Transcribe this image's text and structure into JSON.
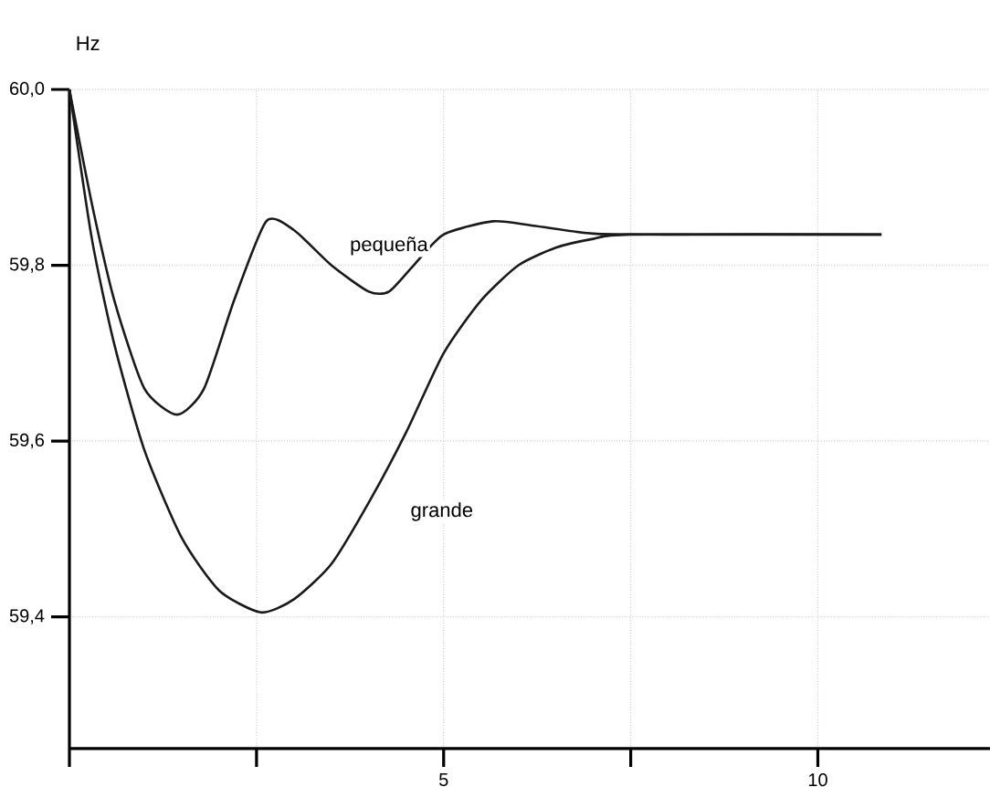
{
  "chart_data": {
    "type": "line",
    "ylabel": "Hz",
    "xlim": [
      0,
      12.3
    ],
    "ylim": [
      59.25,
      60.0
    ],
    "xticks": [
      {
        "value": 0,
        "label": null
      },
      {
        "value": 2.5,
        "label": null
      },
      5,
      {
        "value": 7.5,
        "label": null
      },
      10
    ],
    "yticks": [
      {
        "value": 59.4,
        "label": "59,4"
      },
      {
        "value": 59.6,
        "label": "59,6"
      },
      {
        "value": 59.8,
        "label": "59,8"
      },
      {
        "value": 60.0,
        "label": "60,0"
      }
    ],
    "grid": true,
    "marker": "none",
    "line_style": "solid",
    "series": [
      {
        "name": "pequeña",
        "color": "#1a1a1a",
        "x": [
          0,
          0.3,
          0.6,
          1,
          1.44,
          1.8,
          2.2,
          2.63,
          3,
          3.5,
          4,
          4.27,
          4.6,
          5,
          5.66,
          6.2,
          7,
          8,
          10.85
        ],
        "values": [
          60.0,
          59.87,
          59.76,
          59.66,
          59.63,
          59.66,
          59.76,
          59.85,
          59.84,
          59.8,
          59.77,
          59.77,
          59.8,
          59.835,
          59.85,
          59.845,
          59.836,
          59.835,
          59.835
        ]
      },
      {
        "name": "grande",
        "color": "#1a1a1a",
        "x": [
          0,
          0.3,
          0.6,
          1,
          1.5,
          2,
          2.56,
          3,
          3.5,
          4,
          4.5,
          5,
          5.5,
          6,
          6.5,
          7,
          7.5,
          10.85
        ],
        "values": [
          60.0,
          59.83,
          59.71,
          59.59,
          59.49,
          59.43,
          59.405,
          59.42,
          59.46,
          59.53,
          59.61,
          59.7,
          59.76,
          59.8,
          59.82,
          59.83,
          59.835,
          59.835
        ]
      }
    ]
  }
}
